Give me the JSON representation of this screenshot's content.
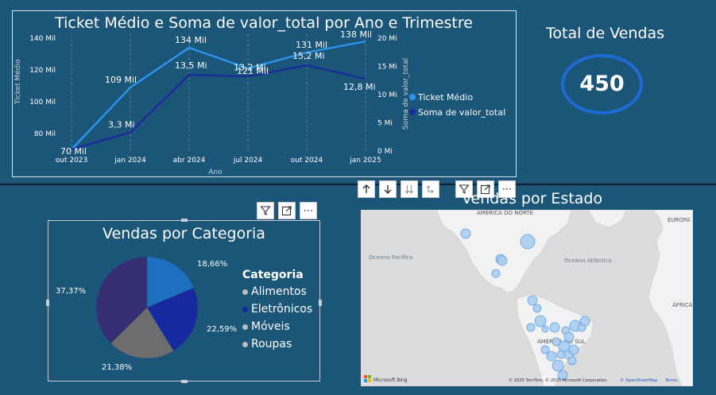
{
  "line_chart": {
    "title": "Ticket Médio e Soma de valor_total por Ano e Trimestre",
    "xlabel": "Ano",
    "ylabel_left": "Ticket Médio",
    "ylabel_right": "Soma de valor_total",
    "colors": {
      "ticket": "#2b95f0",
      "soma": "#1a2b9c"
    },
    "legend": [
      "Ticket Médio",
      "Soma de valor_total"
    ]
  },
  "chart_data": {
    "type": "line",
    "categories": [
      "out 2023",
      "jan 2024",
      "abr 2024",
      "jul 2024",
      "out 2024",
      "jan 2025"
    ],
    "left_ticks": [
      "140 Mil",
      "120 Mil",
      "100 Mil",
      "80 Mil"
    ],
    "right_ticks": [
      "20 Mi",
      "15 Mi",
      "10 Mi",
      "5 Mi",
      "0 Mi"
    ],
    "ylim_left": [
      70,
      140
    ],
    "ylim_right": [
      0,
      20
    ],
    "series": [
      {
        "name": "Ticket Médio",
        "values": [
          70,
          109,
          134,
          121,
          131,
          138
        ],
        "labels": [
          "70 Mil",
          "109 Mil",
          "134 Mil",
          "121 Mil",
          "131 Mil",
          "138 Mil"
        ],
        "axis": "left"
      },
      {
        "name": "Soma de valor_total",
        "values": [
          0.3,
          3.3,
          13.5,
          13.2,
          15.2,
          12.8
        ],
        "labels": [
          "",
          "3,3 Mi",
          "13,5 Mi",
          "13,2 Mi",
          "15,2 Mi",
          "12,8 Mi"
        ],
        "axis": "right"
      }
    ]
  },
  "kpi": {
    "title": "Total de Vendas",
    "value": "450"
  },
  "pie": {
    "title": "Vendas por Categoria",
    "legend_title": "Categoria",
    "categories": [
      "Alimentos",
      "Eletrônicos",
      "Móveis",
      "Roupas"
    ],
    "percent_values": [
      18.66,
      22.59,
      21.38,
      37.37
    ],
    "slice_labels": [
      "18,66%",
      "22,59%",
      "21,38%",
      "37,37%"
    ],
    "colors": [
      "#1d6fbf",
      "#1829a0",
      "#6e6c6c",
      "#352e74"
    ],
    "legend_dot_colors": [
      "#bcbcbc",
      "#1829a0",
      "#bcbcbc",
      "#bcbcbc"
    ]
  },
  "map": {
    "title": "Vendas por Estado",
    "labels": {
      "north_america": "AMÉRICA DO NORTE",
      "europe": "EUROPA",
      "pacific": "Oceano Pacífico",
      "atlantic": "Oceano Atlântico",
      "africa": "ÁFRICA",
      "south_america": "AMÉRICA DO SUL"
    },
    "bing": "Microsoft Bing",
    "attribution": "© 2025 TomTom, © 2025 Microsoft Corporation,",
    "osm": "© OpenStreetMap",
    "terms": "Terms"
  },
  "toolbar": {
    "icons": [
      "arrow-up-icon",
      "arrow-down-icon",
      "double-arrow-down-icon",
      "expand-hierarchy-icon",
      "filter-icon",
      "focus-mode-icon",
      "more-options-icon"
    ],
    "more": "⋯"
  }
}
